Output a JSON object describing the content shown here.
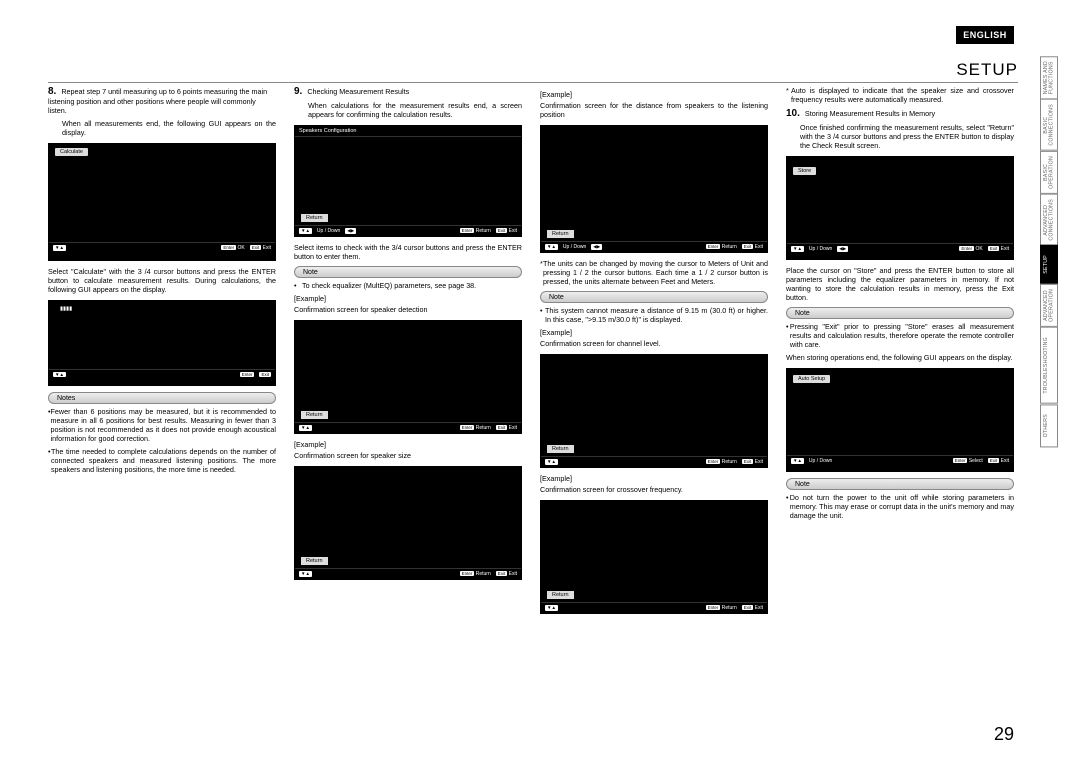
{
  "language_label": "ENGLISH",
  "section_title": "SETUP",
  "page_number": "29",
  "side_tabs": [
    {
      "label": "NAMES AND\nFUNCTIONS"
    },
    {
      "label": "BASIC\nCONNECTIONS"
    },
    {
      "label": "BASIC\nOPERATION"
    },
    {
      "label": "ADVANCED\nCONNECTIONS"
    },
    {
      "label": "SETUP",
      "active": true
    },
    {
      "label": "ADVANCED\nOPERATION"
    },
    {
      "label": "TROUBLESHOOTING"
    },
    {
      "label": "OTHERS"
    }
  ],
  "col1": {
    "step8_num": "8.",
    "step8_a": "Repeat step 7 until measuring up to 6 points measuring the main listening position and other positions where people will commonly listen.",
    "step8_b": "When all measurements end, the following GUI appears on the display.",
    "gui1_item": "Calculate",
    "gui1_footer_left": "▼▲",
    "gui1_footer_ok": "OK",
    "gui1_footer_exit": "Exit",
    "after_gui1": "Select \"Calculate\" with the 3 /4 cursor buttons and press the ENTER button to calculate measurement results. During calculations, the following GUI appears on the display.",
    "gui2_item": "▮▮▮▮",
    "notes_label": "Notes",
    "notes_1": "Fewer than 6 positions may be measured, but it is recommended to measure in all 6 positions for best results. Measuring in fewer than 3 position is not recommended as it does not provide enough acoustical information for good correction.",
    "notes_2": "The time needed to complete calculations depends on the number of connected speakers and measured listening positions. The more speakers and listening positions, the more time is needed."
  },
  "col2": {
    "step9_num": "9.",
    "step9_title": "Checking Measurement Results",
    "step9_body": "When calculations for the measurement results end, a screen appears for conﬁrming the calculation results.",
    "gui1_header": "Speakers Conﬁguration",
    "gui1_return": "Return",
    "gui_footer_updown": "Up / Down",
    "gui_footer_return": "Return",
    "gui_footer_exit": "Exit",
    "gui_footer_enter": "Enter",
    "gui_footer_lr": "◀▶",
    "after_gui1": "Select items to check with the 3/4 cursor buttons and press the ENTER button to enter them.",
    "note_label": "Note",
    "note_body": "To check equalizer (MultEQ) parameters, see page 38.",
    "ex1_label": "[Example]",
    "ex1_caption": "Conﬁrmation screen for speaker detection",
    "ex2_label": "[Example]",
    "ex2_caption": "Conﬁrmation screen for speaker size"
  },
  "col3": {
    "ex1_label": "[Example]",
    "ex1_caption": "Conﬁrmation screen for the distance from speakers to the listening position",
    "after_gui1": "The units can be changed by moving the cursor to Meters of Unit and pressing 1 / 2 the cursor buttons. Each time a 1 / 2 cursor button is pressed, the units alternate between Feet and Meters.",
    "note_label": "Note",
    "note_body": "This system cannot measure a distance of 9.15 m (30.0 ft) or higher. In this case, \">9.15 m/30.0 ft)\" is displayed.",
    "ex2_label": "[Example]",
    "ex2_caption": "Conﬁrmation screen for channel level.",
    "ex3_label": "[Example]",
    "ex3_caption": "Conﬁrmation screen for crossover frequency.",
    "gui_return": "Return"
  },
  "col4": {
    "auto_note": "Auto is displayed to indicate that the speaker size and crossover frequency results were automatically measured.",
    "step10_num": "10.",
    "step10_title": "Storing Measurement Results in Memory",
    "step10_body": "Once ﬁnished conﬁrming the measurement results, select \"Return\" with the 3 /4 cursor buttons and press the ENTER button to display the Check Result screen.",
    "gui1_item": "Store",
    "gui_footer_updown": "Up / Down",
    "gui_footer_ok": "OK",
    "gui_footer_exit": "Exit",
    "after_gui1": "Place the cursor on \"Store\" and press the ENTER button to store all parameters including the equalizer parameters in memory. If not wanting to store the calculation results in memory, press the Exit button.",
    "note1_label": "Note",
    "note1_body": "Pressing \"Exit\" prior to pressing \"Store\" erases all measurement results and calculation results, therefore operate the remote controller with care.",
    "after_note1": "When storing operations end, the following GUI appears on the display.",
    "gui2_header": "Auto Setup",
    "gui_footer_select": "Select",
    "note2_label": "Note",
    "note2_body": "Do not turn the power to the unit off while storing parameters in memory. This may erase or corrupt data in the unit's memory and may damage the unit."
  },
  "footer_keys": {
    "enter": "Enter",
    "exit": "Exit",
    "va": "▼▲"
  }
}
